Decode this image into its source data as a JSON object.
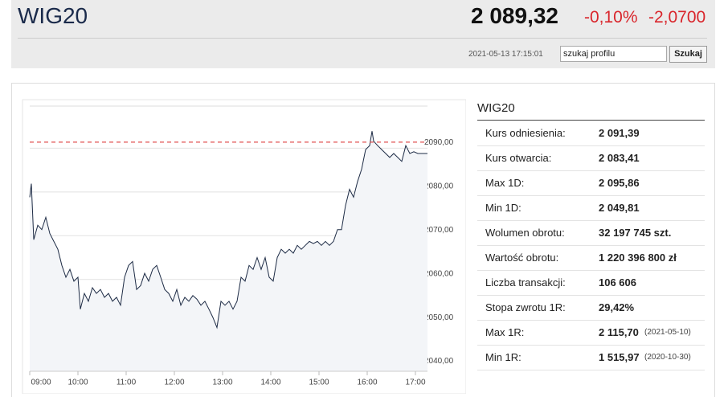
{
  "header": {
    "title": "WIG20",
    "price": "2 089,32",
    "change_pct": "-0,10%",
    "change": "-2,0700",
    "timestamp": "2021-05-13 17:15:01",
    "search_placeholder": "szukaj profilu",
    "search_button": "Szukaj"
  },
  "chart_data": {
    "type": "line",
    "color": "#1d2b45",
    "fill": "#f3f5f8",
    "grid": true,
    "reference_line": 2091.39,
    "reference_color": "#e05050",
    "xlim": [
      "09:00",
      "17:15"
    ],
    "xticks": [
      "09:00",
      "10:00",
      "11:00",
      "12:00",
      "13:00",
      "14:00",
      "15:00",
      "16:00",
      "17:00"
    ],
    "ylim": [
      2039,
      2100
    ],
    "yticks": [
      {
        "value": 2040,
        "label": "2040,00"
      },
      {
        "value": 2050,
        "label": "2050,00"
      },
      {
        "value": 2060,
        "label": "2060,00"
      },
      {
        "value": 2070,
        "label": "2070,00"
      },
      {
        "value": 2080,
        "label": "2080,00"
      },
      {
        "value": 2090,
        "label": "2090,00"
      }
    ],
    "x": [
      "09:00",
      "09:02",
      "09:05",
      "09:10",
      "09:15",
      "09:20",
      "09:25",
      "09:30",
      "09:35",
      "09:40",
      "09:45",
      "09:50",
      "09:55",
      "10:00",
      "10:03",
      "10:08",
      "10:13",
      "10:18",
      "10:23",
      "10:28",
      "10:33",
      "10:38",
      "10:43",
      "10:48",
      "10:53",
      "10:58",
      "11:03",
      "11:08",
      "11:13",
      "11:18",
      "11:23",
      "11:28",
      "11:33",
      "11:38",
      "11:43",
      "11:48",
      "11:53",
      "11:58",
      "12:03",
      "12:08",
      "12:13",
      "12:18",
      "12:23",
      "12:28",
      "12:33",
      "12:38",
      "12:43",
      "12:48",
      "12:53",
      "12:58",
      "13:03",
      "13:08",
      "13:13",
      "13:18",
      "13:23",
      "13:28",
      "13:33",
      "13:38",
      "13:43",
      "13:48",
      "13:53",
      "13:58",
      "14:03",
      "14:08",
      "14:13",
      "14:18",
      "14:23",
      "14:28",
      "14:33",
      "14:38",
      "14:43",
      "14:48",
      "14:53",
      "14:58",
      "15:03",
      "15:08",
      "15:13",
      "15:18",
      "15:23",
      "15:28",
      "15:33",
      "15:38",
      "15:43",
      "15:48",
      "15:53",
      "15:58",
      "16:03",
      "16:06",
      "16:08",
      "16:13",
      "16:18",
      "16:23",
      "16:28",
      "16:33",
      "16:38",
      "16:43",
      "16:48",
      "16:53",
      "16:58",
      "17:03",
      "17:15"
    ],
    "values": [
      2078.8,
      2081.9,
      2069.1,
      2072.4,
      2071.4,
      2074.2,
      2070.5,
      2068.7,
      2066.9,
      2063.2,
      2060.5,
      2062.3,
      2059.6,
      2060.5,
      2053.2,
      2056.8,
      2055.0,
      2058.1,
      2056.8,
      2057.7,
      2055.9,
      2056.8,
      2055.0,
      2055.9,
      2054.1,
      2060.5,
      2063.2,
      2064.1,
      2057.7,
      2058.6,
      2061.4,
      2059.6,
      2062.3,
      2063.2,
      2060.5,
      2057.7,
      2056.8,
      2055.0,
      2057.7,
      2054.1,
      2055.9,
      2055.0,
      2056.3,
      2055.5,
      2054.1,
      2055.0,
      2053.2,
      2051.3,
      2049.0,
      2055.0,
      2054.1,
      2055.0,
      2053.2,
      2055.0,
      2060.5,
      2059.6,
      2063.2,
      2062.3,
      2065.0,
      2062.3,
      2065.0,
      2060.5,
      2059.6,
      2065.0,
      2066.9,
      2066.0,
      2066.9,
      2066.0,
      2067.8,
      2066.9,
      2067.8,
      2068.7,
      2068.2,
      2068.7,
      2067.8,
      2068.7,
      2067.8,
      2068.7,
      2071.4,
      2071.4,
      2076.9,
      2080.6,
      2078.8,
      2082.4,
      2085.2,
      2089.7,
      2090.6,
      2093.9,
      2091.6,
      2090.6,
      2089.7,
      2088.8,
      2087.9,
      2088.8,
      2087.9,
      2087.0,
      2090.6,
      2088.8,
      2089.2,
      2088.8,
      2088.8
    ]
  },
  "table": {
    "title": "WIG20",
    "rows": [
      [
        "Kurs odniesienia:",
        "2 091,39"
      ],
      [
        "Kurs otwarcia:",
        "2 083,41"
      ],
      [
        "Max 1D:",
        "2 095,86"
      ],
      [
        "Min 1D:",
        "2 049,81"
      ],
      [
        "Wolumen obrotu:",
        "32 197 745 szt."
      ],
      [
        "Wartość obrotu:",
        "1 220 396 800 zł"
      ],
      [
        "Liczba transakcji:",
        "106 606"
      ],
      [
        "Stopa zwrotu 1R:",
        "29,42%"
      ],
      [
        "Max 1R:",
        "2 115,70",
        "(2021-05-10)"
      ],
      [
        "Min 1R:",
        "1 515,97",
        "(2020-10-30)"
      ]
    ]
  }
}
